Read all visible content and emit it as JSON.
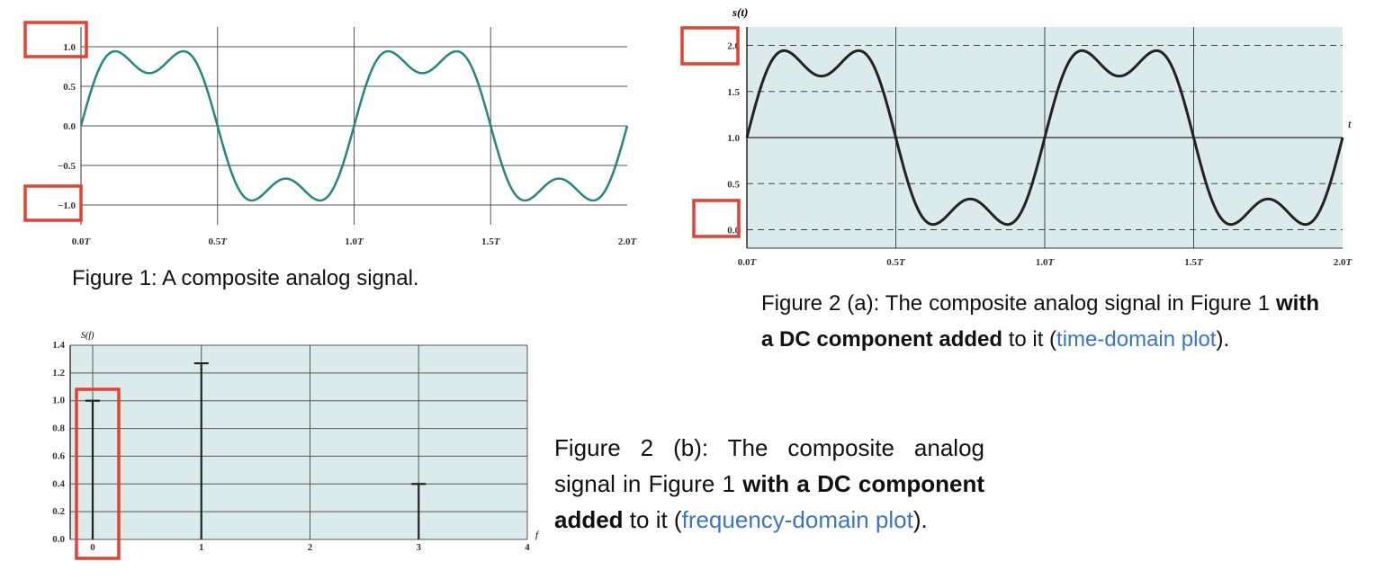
{
  "colors": {
    "fig1_line": "#23867f",
    "fig2_line": "#222222",
    "panel_bg": "#dbeaea",
    "highlight": "#e34132",
    "link": "#3a74c4"
  },
  "chart_data": [
    {
      "id": "fig1",
      "type": "line",
      "title": "",
      "xlabel": "",
      "ylabel": "",
      "x_tick_labels": [
        "0.0T",
        "0.5T",
        "1.0T",
        "1.5T",
        "2.0T"
      ],
      "y_tick_labels": [
        "1.0",
        "0.5",
        "0.0",
        "−0.5",
        "−1.0"
      ],
      "y_ticks": [
        1.0,
        0.5,
        0.0,
        -0.5,
        -1.0
      ],
      "xlim": [
        0,
        2
      ],
      "ylim": [
        -1.25,
        1.25
      ],
      "signal": "square-wave approximation: sin(2πt/T) + sin(6πt/T)/3",
      "grid": true,
      "highlighted_ticks": [
        "1.0",
        "−1.0"
      ]
    },
    {
      "id": "fig2a",
      "type": "line",
      "title": "",
      "xlabel": "t",
      "ylabel": "s(t)",
      "x_tick_labels": [
        "0.0T",
        "0.5T",
        "1.0T",
        "1.5T",
        "2.0T"
      ],
      "y_tick_labels": [
        "2.0",
        "1.5",
        "1.0",
        "0.5",
        "0.0"
      ],
      "y_ticks": [
        2.0,
        1.5,
        1.0,
        0.5,
        0.0
      ],
      "xlim": [
        0,
        2
      ],
      "ylim": [
        -0.2,
        2.2
      ],
      "dc_offset": 1.0,
      "grid": true,
      "highlighted_ticks": [
        "2.0",
        "0.0"
      ]
    },
    {
      "id": "fig2b",
      "type": "bar",
      "title": "",
      "xlabel": "f",
      "ylabel": "S(f)",
      "x_tick_labels": [
        "0",
        "1",
        "2",
        "3",
        "4"
      ],
      "y_tick_labels": [
        "1.4",
        "1.2",
        "1.0",
        "0.8",
        "0.6",
        "0.4",
        "0.2",
        "0.0"
      ],
      "xlim": [
        0,
        4
      ],
      "ylim": [
        0,
        1.4
      ],
      "stems": [
        {
          "f": 0,
          "value": 1.0
        },
        {
          "f": 1,
          "value": 1.27
        },
        {
          "f": 3,
          "value": 0.4
        }
      ],
      "grid": true,
      "highlighted_ticks": [
        "0"
      ]
    }
  ],
  "captions": {
    "fig1": "Figure 1: A composite analog signal.",
    "fig2a": {
      "lead": "Figure 2 (a): The composite analog signal in Figure 1 ",
      "bold": "with a DC component added",
      "mid": " to it (",
      "link": "time-domain plot",
      "tail": ")."
    },
    "fig2b": {
      "lead": "Figure 2 (b): The composite analog signal in Figure 1 ",
      "bold1": "with a DC",
      "bold2": "component added",
      "mid": " to it (",
      "link": "frequency-domain plot",
      "tail": ")."
    }
  }
}
